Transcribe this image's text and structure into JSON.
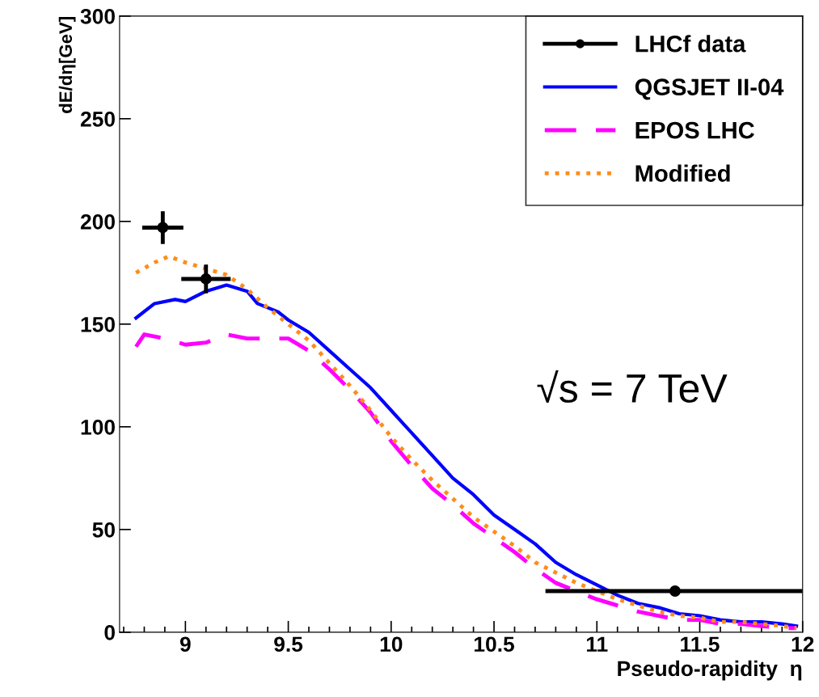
{
  "chart_data": {
    "type": "line",
    "xlabel": "Pseudo-rapidity  η",
    "ylabel": "dE/dη[GeV]",
    "xlim": [
      8.68,
      12
    ],
    "xticks": [
      9,
      9.5,
      10,
      10.5,
      11,
      11.5,
      12
    ],
    "ylim": [
      0,
      300
    ],
    "yticks": [
      0,
      50,
      100,
      150,
      200,
      250,
      300
    ],
    "grid": false,
    "legend": "top right",
    "annotations": [
      "√s = 7 TeV"
    ],
    "series": [
      {
        "name": "LHCf data",
        "type": "scatter",
        "color": "#000000",
        "marker": "circle",
        "x": [
          8.89,
          9.1,
          11.38
        ],
        "values": [
          197,
          172,
          20
        ],
        "errors": [
          8,
          7,
          null
        ],
        "xerrors": [
          0.1,
          0.12,
          [
            10.75,
            12.0
          ]
        ]
      },
      {
        "name": "QGSJET II-04",
        "color": "#0000ff",
        "line_style": "solid",
        "x": [
          8.76,
          8.85,
          8.95,
          9.0,
          9.1,
          9.2,
          9.3,
          9.35,
          9.45,
          9.5,
          9.6,
          9.7,
          9.8,
          9.9,
          10.0,
          10.1,
          10.2,
          10.3,
          10.4,
          10.5,
          10.6,
          10.7,
          10.8,
          10.9,
          11.0,
          11.1,
          11.2,
          11.3,
          11.4,
          11.5,
          11.6,
          11.7,
          11.8,
          11.9,
          11.97
        ],
        "values": [
          153,
          160,
          162,
          161,
          166,
          169,
          166,
          160,
          156,
          152,
          146,
          137,
          128,
          119,
          108,
          97,
          86,
          75,
          67,
          57,
          50,
          43,
          34,
          28,
          23,
          18,
          14,
          12,
          9,
          8,
          6,
          5,
          5,
          4,
          3
        ]
      },
      {
        "name": "EPOS LHC",
        "color": "#ff00ff",
        "line_style": "dashed",
        "x": [
          8.76,
          8.8,
          8.9,
          9.0,
          9.1,
          9.2,
          9.3,
          9.5,
          9.6,
          9.7,
          9.8,
          9.9,
          10.0,
          10.1,
          10.2,
          10.3,
          10.4,
          10.5,
          10.6,
          10.7,
          10.8,
          10.9,
          11.0,
          11.1,
          11.2,
          11.3,
          11.4,
          11.5,
          11.6,
          11.7,
          11.8,
          11.9,
          11.97
        ],
        "values": [
          139,
          145,
          143,
          140,
          141,
          145,
          143,
          143,
          137,
          128,
          118,
          107,
          93,
          81,
          70,
          62,
          53,
          46,
          39,
          31,
          24,
          20,
          16,
          13,
          10,
          8,
          6,
          6,
          4,
          4,
          3,
          2,
          2
        ]
      },
      {
        "name": "Modified",
        "color": "#ff8c1a",
        "line_style": "dotted",
        "x": [
          8.76,
          8.85,
          8.92,
          9.0,
          9.1,
          9.2,
          9.3,
          9.4,
          9.5,
          9.6,
          9.7,
          9.8,
          9.9,
          10.0,
          10.1,
          10.2,
          10.3,
          10.4,
          10.5,
          10.6,
          10.7,
          10.8,
          10.9,
          11.0,
          11.1,
          11.2,
          11.3,
          11.4,
          11.5,
          11.6,
          11.7,
          11.8,
          11.9,
          11.97
        ],
        "values": [
          175,
          180,
          183,
          180,
          177,
          174,
          167,
          158,
          150,
          142,
          131,
          120,
          108,
          95,
          84,
          74,
          65,
          56,
          49,
          42,
          34,
          29,
          24,
          20,
          16,
          13,
          10,
          8,
          7,
          5,
          5,
          4,
          3,
          2
        ]
      }
    ]
  }
}
